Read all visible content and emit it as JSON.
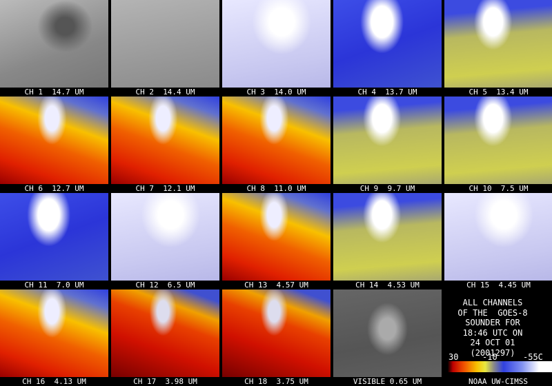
{
  "panels": [
    {
      "label": "CH 1  14.7 UM"
    },
    {
      "label": "CH 2  14.4 UM"
    },
    {
      "label": "CH 3  14.0 UM"
    },
    {
      "label": "CH 4  13.7 UM"
    },
    {
      "label": "CH 5  13.4 UM"
    },
    {
      "label": "CH 6  12.7 UM"
    },
    {
      "label": "CH 7  12.1 UM"
    },
    {
      "label": "CH 8  11.0 UM"
    },
    {
      "label": "CH 9  9.7 UM"
    },
    {
      "label": "CH 10  7.5 UM"
    },
    {
      "label": "CH 11  7.0 UM"
    },
    {
      "label": "CH 12  6.5 UM"
    },
    {
      "label": "CH 13  4.57 UM"
    },
    {
      "label": "CH 14  4.53 UM"
    },
    {
      "label": "CH 15  4.45 UM"
    },
    {
      "label": "CH 16  4.13 UM"
    },
    {
      "label": "CH 17  3.98 UM"
    },
    {
      "label": "CH 18  3.75 UM"
    },
    {
      "label": "VISIBLE 0.65 UM"
    }
  ],
  "info": {
    "lines": [
      "ALL CHANNELS",
      "OF THE  GOES-8",
      "SOUNDER FOR",
      "18:46 UTC ON",
      "24 OCT 01",
      "(2001297)"
    ],
    "scale_labels": [
      "30",
      "-10",
      "-55C"
    ],
    "credit": "NOAA UW-CIMSS"
  }
}
